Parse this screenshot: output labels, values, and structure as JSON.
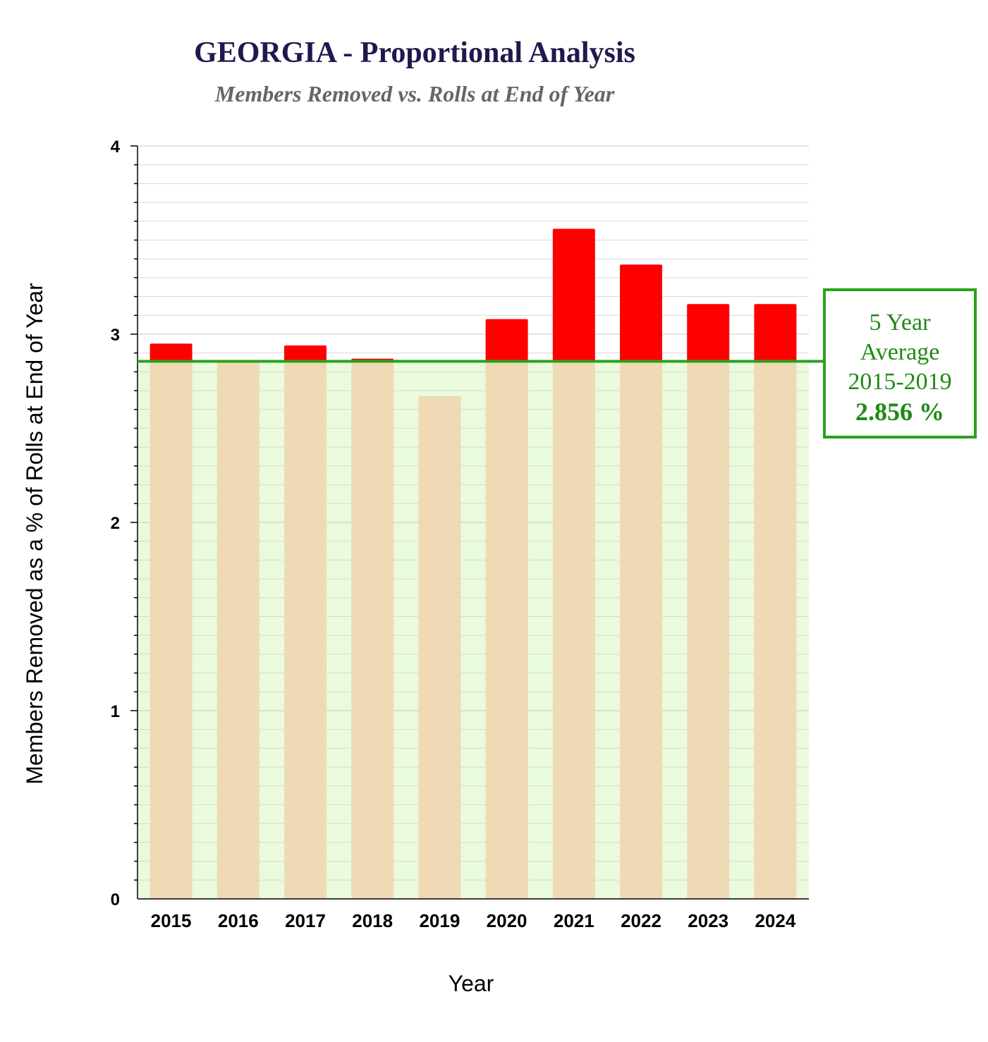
{
  "chart_data": {
    "type": "bar",
    "title": "GEORGIA - Proportional Analysis",
    "subtitle": "Members Removed vs. Rolls at End of Year",
    "xlabel": "Year",
    "ylabel": "Members Removed as a % of Rolls at End of Year",
    "categories": [
      "2015",
      "2016",
      "2017",
      "2018",
      "2019",
      "2020",
      "2021",
      "2022",
      "2023",
      "2024"
    ],
    "values": [
      2.95,
      2.85,
      2.94,
      2.87,
      2.67,
      3.08,
      3.56,
      3.37,
      3.16,
      3.16
    ],
    "ylim": [
      0,
      4
    ],
    "yticks": [
      "0",
      "1",
      "2",
      "3",
      "4"
    ],
    "minor_step": 0.1,
    "baseline_average": 2.856,
    "colors": {
      "below_average": "#f0d9b5",
      "above_average": "#ff0000",
      "average_line": "#2aa21c",
      "below_band": "#e9fbdc",
      "grid": "#d8d8d8",
      "title": "#1e1a4e",
      "subtitle": "#666666"
    },
    "annotation": {
      "line1": "5 Year",
      "line2": "Average",
      "line3": "2015-2019",
      "value": "2.856 %"
    }
  }
}
